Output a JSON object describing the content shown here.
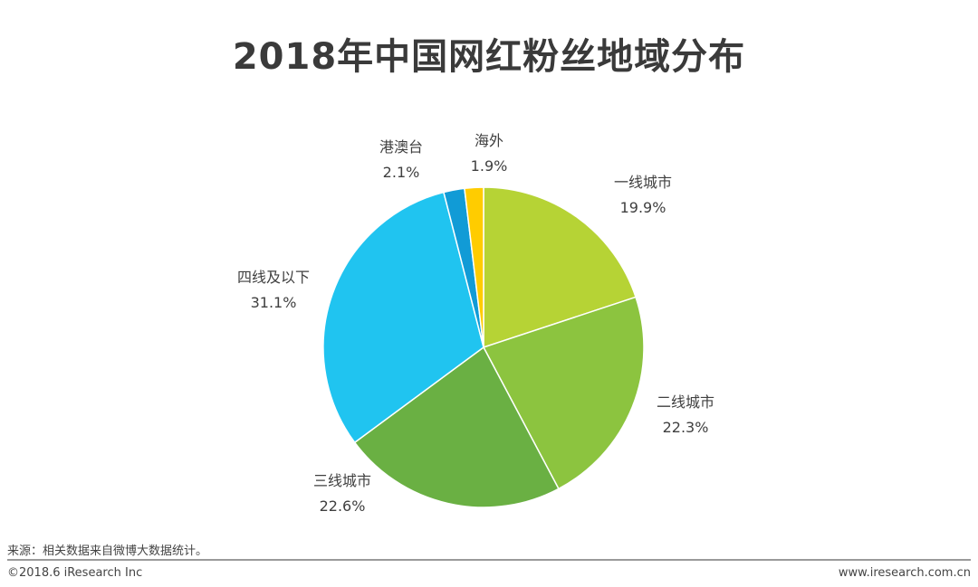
{
  "chart_data": {
    "type": "pie",
    "title": "2018年中国网红粉丝地域分布",
    "slices": [
      {
        "label": "一线城市",
        "value": 19.9,
        "display": "19.9%",
        "color": "#b6d335"
      },
      {
        "label": "二线城市",
        "value": 22.3,
        "display": "22.3%",
        "color": "#8cc43f"
      },
      {
        "label": "三线城市",
        "value": 22.6,
        "display": "22.6%",
        "color": "#6ab043"
      },
      {
        "label": "四线及以下",
        "value": 31.1,
        "display": "31.1%",
        "color": "#20c4f0"
      },
      {
        "label": "港澳台",
        "value": 2.1,
        "display": "2.1%",
        "color": "#119bd6"
      },
      {
        "label": "海外",
        "value": 1.9,
        "display": "1.9%",
        "color": "#ffcc00"
      }
    ]
  },
  "footer": {
    "source": "来源：相关数据来自微博大数据统计。",
    "copyright": "©2018.6 iResearch Inc",
    "website": "www.iresearch.com.cn"
  }
}
